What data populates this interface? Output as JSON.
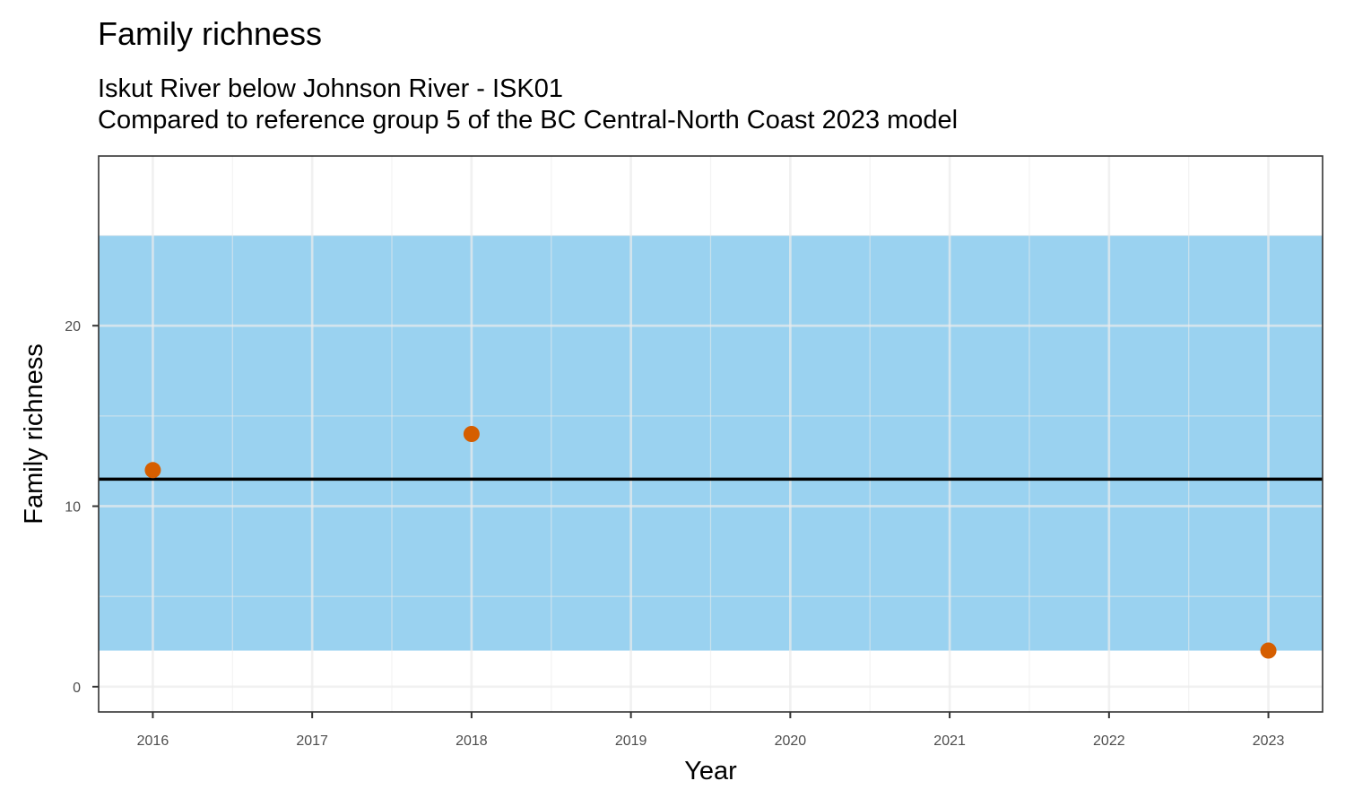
{
  "title": "Family richness",
  "subtitle_line1": "Iskut River below Johnson River - ISK01",
  "subtitle_line2": "Compared to reference group 5 of the BC Central-North Coast 2023 model",
  "colors": {
    "band": "#9AD2F0",
    "points": "#D55E00",
    "reference_line": "#000000",
    "grid": "#EBEBEB",
    "panel_border": "#333333"
  },
  "chart_data": {
    "type": "scatter",
    "title": "Family richness",
    "xlabel": "Year",
    "ylabel": "Family richness",
    "x_ticks": [
      "2016",
      "2017",
      "2018",
      "2019",
      "2020",
      "2021",
      "2022",
      "2023"
    ],
    "y_ticks": [
      "0",
      "10",
      "20"
    ],
    "xlim": [
      2015.66,
      2023.34
    ],
    "ylim": [
      -1.4,
      29.4
    ],
    "grid": true,
    "points": [
      {
        "x": 2016,
        "y": 12
      },
      {
        "x": 2018,
        "y": 14
      },
      {
        "x": 2023,
        "y": 2
      }
    ],
    "reference_band": {
      "lower": 2,
      "upper": 25
    },
    "reference_line": {
      "y": 11.5
    }
  }
}
